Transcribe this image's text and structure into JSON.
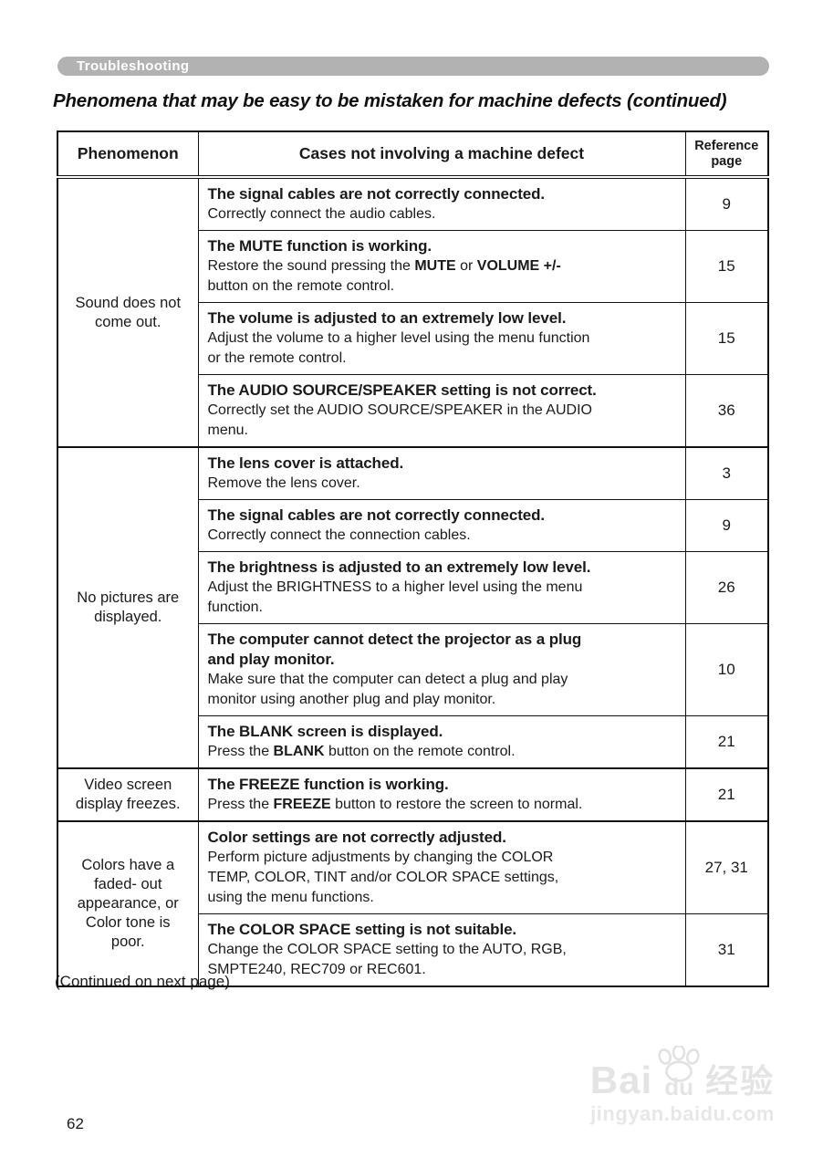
{
  "page": {
    "section_label": "Troubleshooting",
    "title": "Phenomena that may be easy to be mistaken for machine defects (continued)",
    "continued_note": "(Continued on next page)",
    "page_number": "62"
  },
  "colors": {
    "pill_background": "#b2b2b2",
    "pill_text": "#ffffff",
    "table_border": "#111111",
    "body_text": "#1a1a1a",
    "watermark": "#e4e4e4"
  },
  "table": {
    "headers": {
      "phenomenon": "Phenomenon",
      "cases": "Cases not involving a machine defect",
      "reference": "Reference page"
    },
    "groups": [
      {
        "phenomenon_lines": [
          "Sound does not",
          "come out."
        ],
        "rows": [
          {
            "heading_lines": [
              "The signal cables are not correctly connected."
            ],
            "body_lines": [
              [
                {
                  "t": "Correctly connect the audio cables."
                }
              ]
            ],
            "ref": "9"
          },
          {
            "heading_lines": [
              "The MUTE function is working."
            ],
            "body_lines": [
              [
                {
                  "t": "Restore the sound pressing the "
                },
                {
                  "t": "MUTE",
                  "b": true
                },
                {
                  "t": " or "
                },
                {
                  "t": "VOLUME +/-",
                  "b": true
                }
              ],
              [
                {
                  "t": "button on the remote control."
                }
              ]
            ],
            "ref": "15"
          },
          {
            "heading_lines": [
              "The volume is adjusted to an extremely low level."
            ],
            "body_lines": [
              [
                {
                  "t": "Adjust the volume to a higher level using the menu function"
                }
              ],
              [
                {
                  "t": "or the remote control."
                }
              ]
            ],
            "ref": "15"
          },
          {
            "heading_lines": [
              "The AUDIO SOURCE/SPEAKER setting is not correct."
            ],
            "body_lines": [
              [
                {
                  "t": "Correctly set the AUDIO SOURCE/SPEAKER in the AUDIO"
                }
              ],
              [
                {
                  "t": "menu."
                }
              ]
            ],
            "ref": "36"
          }
        ]
      },
      {
        "phenomenon_lines": [
          "No pictures are",
          "displayed."
        ],
        "rows": [
          {
            "heading_lines": [
              "The lens cover is attached."
            ],
            "body_lines": [
              [
                {
                  "t": "Remove the lens cover."
                }
              ]
            ],
            "ref": "3"
          },
          {
            "heading_lines": [
              "The signal cables are not correctly connected."
            ],
            "body_lines": [
              [
                {
                  "t": "Correctly connect the connection cables."
                }
              ]
            ],
            "ref": "9"
          },
          {
            "heading_lines": [
              "The brightness is adjusted to an extremely low level."
            ],
            "body_lines": [
              [
                {
                  "t": "Adjust the BRIGHTNESS to a higher level using the menu"
                }
              ],
              [
                {
                  "t": "function."
                }
              ]
            ],
            "ref": "26"
          },
          {
            "heading_lines": [
              "The computer cannot detect the projector as a plug",
              "and play monitor."
            ],
            "body_lines": [
              [
                {
                  "t": "Make sure that the computer can detect a plug and play"
                }
              ],
              [
                {
                  "t": "monitor using another plug and play monitor."
                }
              ]
            ],
            "ref": "10"
          },
          {
            "heading_lines": [
              "The BLANK screen is displayed."
            ],
            "body_lines": [
              [
                {
                  "t": "Press the "
                },
                {
                  "t": "BLANK",
                  "b": true
                },
                {
                  "t": " button on the remote control."
                }
              ]
            ],
            "ref": "21"
          }
        ]
      },
      {
        "phenomenon_lines": [
          "Video screen",
          "display freezes."
        ],
        "rows": [
          {
            "heading_lines": [
              "The FREEZE function is working."
            ],
            "body_lines": [
              [
                {
                  "t": "Press the "
                },
                {
                  "t": "FREEZE",
                  "b": true
                },
                {
                  "t": " button to restore the screen to normal."
                }
              ]
            ],
            "ref": "21"
          }
        ]
      },
      {
        "phenomenon_lines": [
          "Colors have a",
          "faded- out",
          "appearance, or",
          "Color tone is",
          "poor."
        ],
        "rows": [
          {
            "heading_lines": [
              "Color settings are not correctly adjusted."
            ],
            "body_lines": [
              [
                {
                  "t": "Perform picture adjustments by changing the COLOR"
                }
              ],
              [
                {
                  "t": "TEMP, COLOR, TINT and/or COLOR SPACE settings,"
                }
              ],
              [
                {
                  "t": "using the menu functions."
                }
              ]
            ],
            "ref": "27, 31"
          },
          {
            "heading_lines": [
              "The COLOR SPACE setting is not suitable."
            ],
            "body_lines": [
              [
                {
                  "t": "Change the COLOR SPACE setting to the AUTO, RGB,"
                }
              ],
              [
                {
                  "t": "SMPTE240, REC709 or REC601."
                }
              ]
            ],
            "ref": "31"
          }
        ]
      }
    ]
  },
  "watermark": {
    "brand_bai": "Bai",
    "brand_du": "du",
    "brand_cn": "经验",
    "url": "jingyan.baidu.com"
  }
}
